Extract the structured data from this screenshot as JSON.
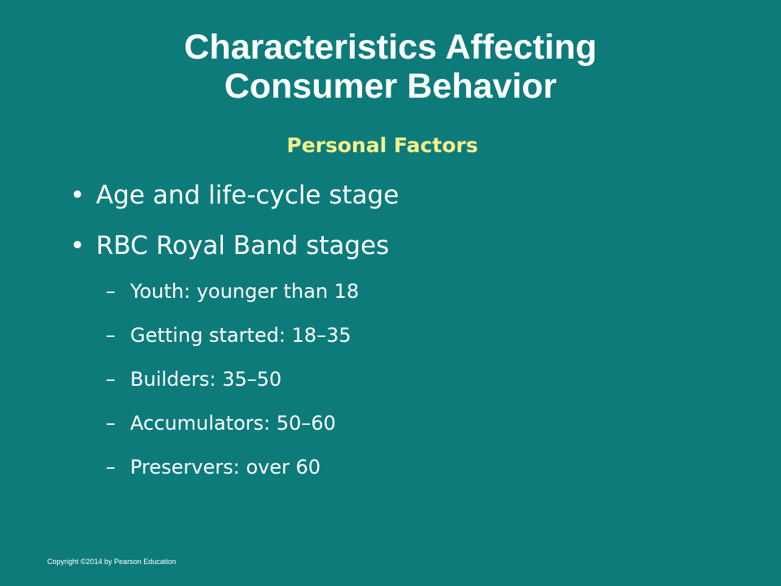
{
  "slide": {
    "title_line1": "Characteristics Affecting",
    "title_line2": "Consumer Behavior",
    "subtitle": "Personal Factors",
    "bullet_marker": "•",
    "dash_marker": "–",
    "bullets": [
      "Age and life-cycle stage",
      "RBC Royal Band stages"
    ],
    "sub_items": [
      "Youth: younger than 18",
      "Getting started: 18–35",
      "Builders: 35–50",
      "Accumulators: 50–60",
      "Preservers: over 60"
    ],
    "copyright": "Copyright ©2014 by Pearson Education"
  },
  "colors": {
    "background": "#0e7b7b",
    "title": "#ffffff",
    "subtitle": "#f6f08c",
    "body_text": "#ffffff"
  }
}
